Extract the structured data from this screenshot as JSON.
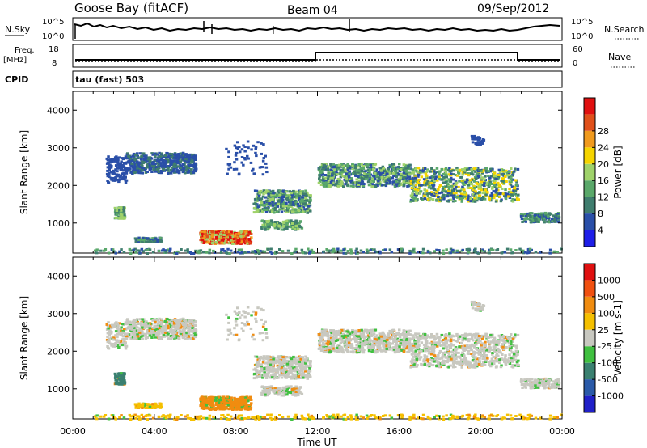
{
  "header": {
    "station": "Goose Bay (fitACF)",
    "beam": "Beam 04",
    "date": "09/Sep/2012"
  },
  "top_panels": {
    "nsky_label": "N.Sky",
    "nsky_ticks": [
      "10^5",
      "10^0"
    ],
    "nsearch_label": "N.Search",
    "nsearch_ticks": [
      "10^5",
      "10^0"
    ],
    "freq_label_1": "Freq.",
    "freq_label_2": "[MHz]",
    "freq_ticks": [
      "18",
      "8"
    ],
    "nave_label": "Nave",
    "nave_ticks": [
      "60",
      "0"
    ],
    "cpid_label": "CPID",
    "cpid_value": "tau (fast) 503"
  },
  "chart_data": [
    {
      "type": "heatmap",
      "name": "power",
      "ylabel": "Slant Range [km]",
      "xlabel": "Time UT",
      "xlim": [
        0,
        24
      ],
      "ylim": [
        200,
        4500
      ],
      "x_ticks": [
        "00:00",
        "04:00",
        "08:00",
        "12:00",
        "16:00",
        "20:00",
        "00:00"
      ],
      "y_ticks": [
        "1000",
        "2000",
        "3000",
        "4000"
      ],
      "colorbar": {
        "label": "Power [dB]",
        "ticks": [
          "4",
          "8",
          "12",
          "16",
          "20",
          "24",
          "28"
        ],
        "colors": [
          "#1e1ee8",
          "#2a4fa8",
          "#3f7d6e",
          "#5aa86a",
          "#9fd26a",
          "#f5d400",
          "#f09a1e",
          "#e0501a",
          "#e01010"
        ]
      }
    },
    {
      "type": "heatmap",
      "name": "velocity",
      "ylabel": "Slant Range [km]",
      "xlabel": "Time UT",
      "xlim": [
        0,
        24
      ],
      "ylim": [
        200,
        4500
      ],
      "x_ticks": [
        "00:00",
        "04:00",
        "08:00",
        "12:00",
        "16:00",
        "20:00",
        "00:00"
      ],
      "y_ticks": [
        "1000",
        "2000",
        "3000",
        "4000"
      ],
      "colorbar": {
        "label": "Velocity [m s-1]",
        "ticks": [
          "1000",
          "500",
          "100",
          "25",
          "-25",
          "-100",
          "-500",
          "-1000"
        ],
        "colors": [
          "#2020c8",
          "#2a5aa8",
          "#3a8070",
          "#40c040",
          "#c8c8c0",
          "#f5c000",
          "#f08c10",
          "#f05010",
          "#e01010"
        ]
      }
    }
  ]
}
